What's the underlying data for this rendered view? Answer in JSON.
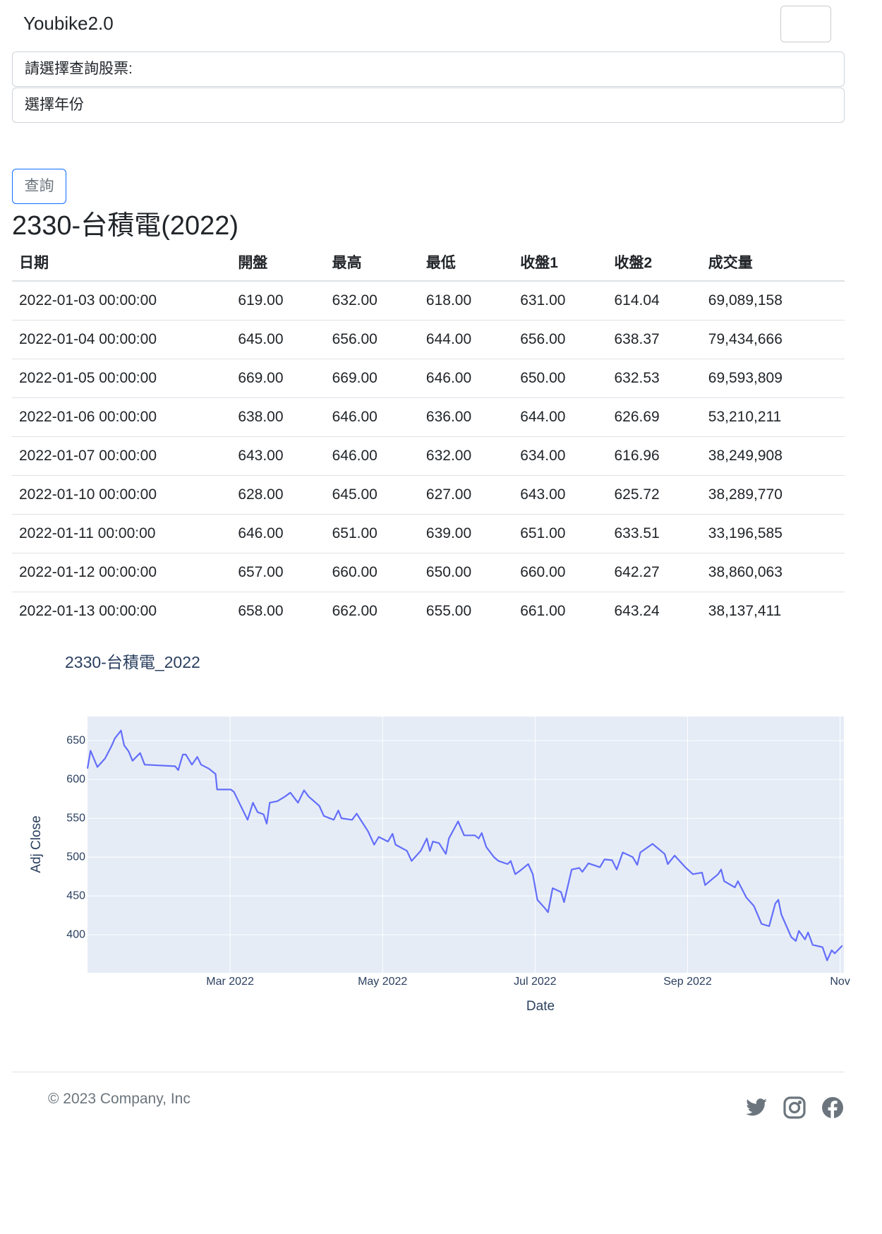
{
  "navbar": {
    "brand": "Youbike2.0"
  },
  "form": {
    "stock_select": "請選擇查詢股票:",
    "year_select": "選擇年份",
    "submit": "查詢"
  },
  "heading": "2330-台積電(2022)",
  "table": {
    "headers": [
      "日期",
      "開盤",
      "最高",
      "最低",
      "收盤1",
      "收盤2",
      "成交量"
    ],
    "rows": [
      [
        "2022-01-03 00:00:00",
        "619.00",
        "632.00",
        "618.00",
        "631.00",
        "614.04",
        "69,089,158"
      ],
      [
        "2022-01-04 00:00:00",
        "645.00",
        "656.00",
        "644.00",
        "656.00",
        "638.37",
        "79,434,666"
      ],
      [
        "2022-01-05 00:00:00",
        "669.00",
        "669.00",
        "646.00",
        "650.00",
        "632.53",
        "69,593,809"
      ],
      [
        "2022-01-06 00:00:00",
        "638.00",
        "646.00",
        "636.00",
        "644.00",
        "626.69",
        "53,210,211"
      ],
      [
        "2022-01-07 00:00:00",
        "643.00",
        "646.00",
        "632.00",
        "634.00",
        "616.96",
        "38,249,908"
      ],
      [
        "2022-01-10 00:00:00",
        "628.00",
        "645.00",
        "627.00",
        "643.00",
        "625.72",
        "38,289,770"
      ],
      [
        "2022-01-11 00:00:00",
        "646.00",
        "651.00",
        "639.00",
        "651.00",
        "633.51",
        "33,196,585"
      ],
      [
        "2022-01-12 00:00:00",
        "657.00",
        "660.00",
        "650.00",
        "660.00",
        "642.27",
        "38,860,063"
      ],
      [
        "2022-01-13 00:00:00",
        "658.00",
        "662.00",
        "655.00",
        "661.00",
        "643.24",
        "38,137,411"
      ]
    ]
  },
  "chart_data": {
    "type": "line",
    "title": "2330-台積電_2022",
    "x_label": "Date",
    "y_label": "Adj Close",
    "color": "#636efa",
    "background": "#e5ecf6",
    "grid": true,
    "x": [
      1.13,
      1.17,
      1.26,
      1.36,
      1.44,
      1.49,
      1.57,
      1.61,
      1.67,
      1.72,
      1.82,
      1.88,
      2.28,
      2.32,
      2.38,
      2.42,
      2.5,
      2.57,
      2.62,
      2.72,
      2.81,
      2.83,
      3.01,
      3.05,
      3.13,
      3.23,
      3.3,
      3.36,
      3.44,
      3.48,
      3.52,
      3.62,
      3.72,
      3.79,
      3.89,
      3.97,
      4.03,
      4.17,
      4.23,
      4.36,
      4.42,
      4.46,
      4.6,
      4.66,
      4.81,
      4.89,
      4.95,
      5.07,
      5.13,
      5.17,
      5.32,
      5.38,
      5.5,
      5.58,
      5.62,
      5.66,
      5.74,
      5.83,
      5.87,
      5.93,
      5.99,
      6.07,
      6.21,
      6.26,
      6.3,
      6.36,
      6.46,
      6.52,
      6.64,
      6.68,
      6.74,
      6.81,
      6.91,
      6.97,
      7.03,
      7.13,
      7.17,
      7.23,
      7.34,
      7.38,
      7.48,
      7.58,
      7.62,
      7.7,
      7.85,
      7.91,
      8.01,
      8.07,
      8.15,
      8.28,
      8.34,
      8.38,
      8.54,
      8.7,
      8.74,
      8.83,
      8.97,
      9.07,
      9.19,
      9.23,
      9.4,
      9.44,
      9.48,
      9.62,
      9.66,
      9.77,
      9.87,
      9.97,
      10.07,
      10.15,
      10.19,
      10.23,
      10.36,
      10.42,
      10.46,
      10.54,
      10.58,
      10.64,
      10.77,
      10.83,
      10.89,
      10.93,
      11.03
    ],
    "values": [
      614,
      637,
      616,
      627,
      642,
      653,
      663,
      644,
      636,
      624,
      634,
      619,
      617,
      612,
      632,
      632,
      619,
      629,
      619,
      614,
      607,
      587,
      587,
      584,
      568,
      548,
      570,
      558,
      555,
      543,
      570,
      572,
      578,
      583,
      570,
      586,
      578,
      566,
      553,
      548,
      560,
      550,
      548,
      556,
      533,
      516,
      526,
      520,
      530,
      516,
      508,
      495,
      508,
      524,
      508,
      520,
      518,
      504,
      524,
      535,
      546,
      528,
      528,
      524,
      531,
      513,
      500,
      495,
      491,
      495,
      478,
      483,
      491,
      478,
      445,
      434,
      429,
      460,
      455,
      442,
      484,
      486,
      481,
      492,
      487,
      497,
      496,
      484,
      506,
      500,
      490,
      506,
      517,
      504,
      491,
      502,
      487,
      478,
      480,
      464,
      478,
      484,
      469,
      461,
      469,
      448,
      437,
      414,
      411,
      440,
      445,
      426,
      397,
      392,
      405,
      394,
      403,
      387,
      384,
      367,
      380,
      376,
      386
    ],
    "xlim": [
      1.13,
      11.05
    ],
    "xticks": [
      {
        "value": 3,
        "label": "Mar 2022"
      },
      {
        "value": 5,
        "label": "May 2022"
      },
      {
        "value": 7,
        "label": "Jul 2022"
      },
      {
        "value": 9,
        "label": "Sep 2022"
      },
      {
        "value": 11,
        "label": "Nov"
      }
    ],
    "ylim": [
      351,
      681
    ],
    "yticks": [
      400,
      450,
      500,
      550,
      600,
      650
    ]
  },
  "footer": {
    "copyright": "© 2023 Company, Inc"
  }
}
